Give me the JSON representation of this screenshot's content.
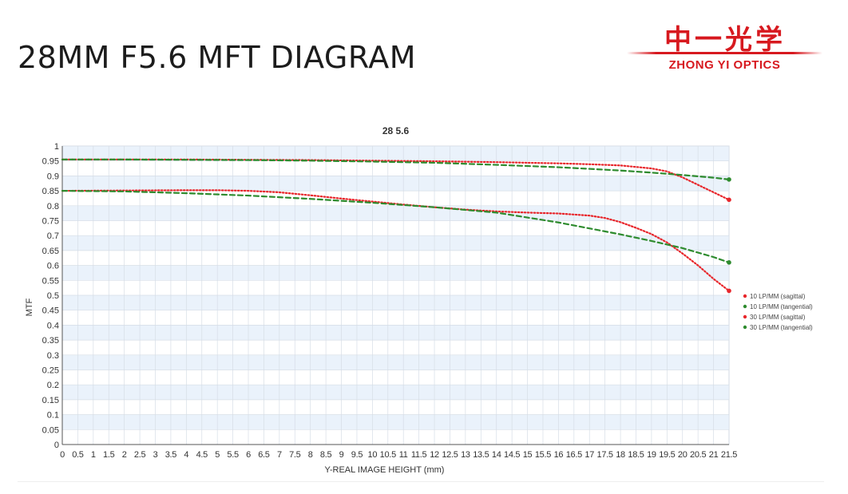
{
  "page": {
    "title": "28MM F5.6 MFT DIAGRAM",
    "logo_cn": "中一光学",
    "logo_en": "ZHONG YI OPTICS"
  },
  "colors": {
    "red": "#e8262b",
    "green": "#2e8b2e",
    "band": "#eaf2fb",
    "grid": "#d6dde6",
    "logo": "#d7191f"
  },
  "chart_data": {
    "type": "line",
    "title": "28 5.6",
    "xlabel": "Y-REAL IMAGE HEIGHT (mm)",
    "ylabel": "MTF",
    "xlim": [
      0,
      21.5
    ],
    "ylim": [
      0,
      1
    ],
    "grid": true,
    "legend_position": "right",
    "x_ticks": [
      "0",
      "0.5",
      "1",
      "1.5",
      "2",
      "2.5",
      "3",
      "3.5",
      "4",
      "4.5",
      "5",
      "5.5",
      "6",
      "6.5",
      "7",
      "7.5",
      "8",
      "8.5",
      "9",
      "9.5",
      "10",
      "10.5",
      "11",
      "11.5",
      "12",
      "12.5",
      "13",
      "13.5",
      "14",
      "14.5",
      "15",
      "15.5",
      "16",
      "16.5",
      "17",
      "17.5",
      "18",
      "18.5",
      "19",
      "19.5",
      "20",
      "20.5",
      "21",
      "21.5"
    ],
    "y_ticks": [
      "0",
      "0.05",
      "0.1",
      "0.15",
      "0.2",
      "0.25",
      "0.3",
      "0.35",
      "0.4",
      "0.45",
      "0.5",
      "0.55",
      "0.6",
      "0.65",
      "0.7",
      "0.75",
      "0.8",
      "0.85",
      "0.9",
      "0.95",
      "1"
    ],
    "series": [
      {
        "name": "10 LP/MM (sagittal)",
        "color": "#e8262b",
        "style": "dotted",
        "x": [
          0,
          2,
          4,
          6,
          8,
          10,
          12,
          14,
          15,
          16,
          17,
          18,
          19,
          19.5,
          20,
          20.5,
          21,
          21.5
        ],
        "y": [
          0.955,
          0.955,
          0.955,
          0.954,
          0.953,
          0.951,
          0.949,
          0.946,
          0.944,
          0.942,
          0.939,
          0.935,
          0.925,
          0.915,
          0.895,
          0.87,
          0.845,
          0.82
        ]
      },
      {
        "name": "10 LP/MM (tangential)",
        "color": "#2e8b2e",
        "style": "dashed",
        "x": [
          0,
          2,
          4,
          6,
          8,
          10,
          12,
          14,
          16,
          18,
          19,
          20,
          21,
          21.5
        ],
        "y": [
          0.955,
          0.955,
          0.954,
          0.953,
          0.951,
          0.948,
          0.944,
          0.937,
          0.929,
          0.918,
          0.911,
          0.903,
          0.894,
          0.888
        ]
      },
      {
        "name": "30 LP/MM (sagittal)",
        "color": "#e8262b",
        "style": "dotted",
        "x": [
          0,
          2,
          4,
          5,
          6,
          7,
          8,
          9,
          10,
          11,
          12,
          13,
          14,
          15,
          16,
          17,
          17.5,
          18,
          18.5,
          19,
          19.5,
          20,
          20.5,
          21,
          21.5
        ],
        "y": [
          0.85,
          0.851,
          0.852,
          0.852,
          0.85,
          0.845,
          0.835,
          0.824,
          0.814,
          0.804,
          0.795,
          0.787,
          0.781,
          0.777,
          0.774,
          0.767,
          0.759,
          0.745,
          0.726,
          0.705,
          0.677,
          0.64,
          0.6,
          0.555,
          0.515
        ]
      },
      {
        "name": "30 LP/MM (tangential)",
        "color": "#2e8b2e",
        "style": "dashed",
        "x": [
          0,
          2,
          4,
          6,
          8,
          10,
          12,
          14,
          16,
          17,
          18,
          19,
          20,
          21,
          21.5
        ],
        "y": [
          0.85,
          0.848,
          0.842,
          0.834,
          0.823,
          0.81,
          0.795,
          0.777,
          0.744,
          0.724,
          0.704,
          0.682,
          0.658,
          0.628,
          0.61
        ]
      }
    ]
  }
}
